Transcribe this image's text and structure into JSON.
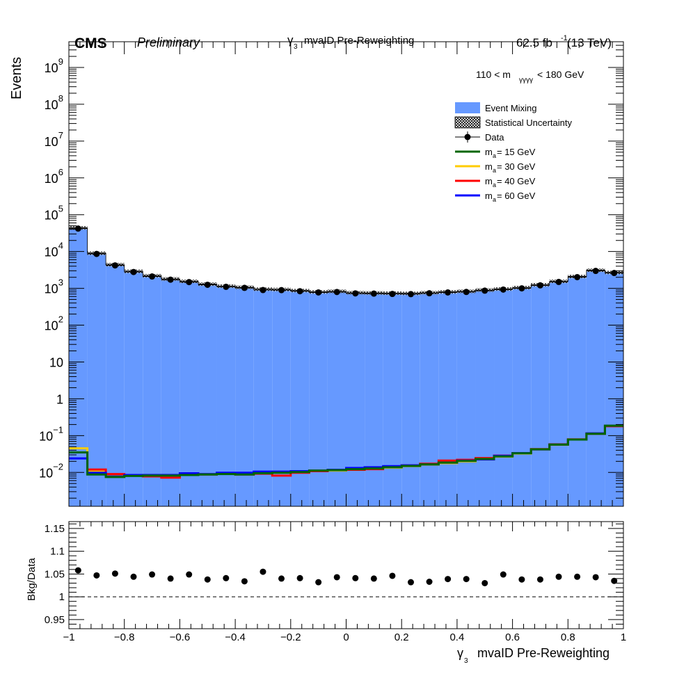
{
  "header": {
    "experiment": "CMS",
    "status": "Preliminary",
    "title_main": "γ",
    "title_sub": "3",
    "title_rest": "mvaID Pre-Reweighting",
    "lumi_pre": "62.5 fb",
    "lumi_sup": "-1",
    "lumi_post": " (13 TeV)"
  },
  "annotation": {
    "pre": "110 < m",
    "sub": "γγγγ",
    "post": " < 180 GeV"
  },
  "axes": {
    "ylabel": "Events",
    "ratio_ylabel": "Bkg/Data",
    "xlabel_main": "γ",
    "xlabel_sub": "3",
    "xlabel_rest": "mvaID Pre-Reweighting"
  },
  "legend": [
    {
      "label": "Event Mixing",
      "style": "fill",
      "color": "#6699ff"
    },
    {
      "label": "Statistical Uncertainty",
      "style": "hatch",
      "color": "#000000"
    },
    {
      "label": "Data",
      "style": "marker",
      "color": "#000000"
    },
    {
      "label_pre": "m",
      "label_sub": "a",
      "label_post": " = 15 GeV",
      "style": "line",
      "color": "#006600"
    },
    {
      "label_pre": "m",
      "label_sub": "a",
      "label_post": " = 30 GeV",
      "style": "line",
      "color": "#ffcc00"
    },
    {
      "label_pre": "m",
      "label_sub": "a",
      "label_post": " = 40 GeV",
      "style": "line",
      "color": "#ff0000"
    },
    {
      "label_pre": "m",
      "label_sub": "a",
      "label_post": " = 60 GeV",
      "style": "line",
      "color": "#0000ff"
    }
  ],
  "chart_data": [
    {
      "type": "bar",
      "panel": "main",
      "ylabel": "Events",
      "yscale": "log",
      "ylim": [
        0.0012,
        5000000000
      ],
      "xlim": [
        -1,
        1
      ],
      "y_ticks": [
        {
          "value": 0.01,
          "base": "10",
          "exp": "−2"
        },
        {
          "value": 0.1,
          "base": "10",
          "exp": "−1"
        },
        {
          "value": 1,
          "base": "1",
          "exp": ""
        },
        {
          "value": 10,
          "base": "10",
          "exp": ""
        },
        {
          "value": 100,
          "base": "10",
          "exp": "2"
        },
        {
          "value": 1000,
          "base": "10",
          "exp": "3"
        },
        {
          "value": 10000,
          "base": "10",
          "exp": "4"
        },
        {
          "value": 100000,
          "base": "10",
          "exp": "5"
        },
        {
          "value": 1000000,
          "base": "10",
          "exp": "6"
        },
        {
          "value": 10000000,
          "base": "10",
          "exp": "7"
        },
        {
          "value": 100000000,
          "base": "10",
          "exp": "8"
        },
        {
          "value": 1000000000,
          "base": "10",
          "exp": "9"
        }
      ],
      "bin_edges": [
        -1.0,
        -0.9333,
        -0.8667,
        -0.8,
        -0.7333,
        -0.6667,
        -0.6,
        -0.5333,
        -0.4667,
        -0.4,
        -0.3333,
        -0.2667,
        -0.2,
        -0.1333,
        -0.0667,
        0.0,
        0.0667,
        0.1333,
        0.2,
        0.2667,
        0.3333,
        0.4,
        0.4667,
        0.5333,
        0.6,
        0.6667,
        0.7333,
        0.8,
        0.8667,
        0.9333,
        1.0
      ],
      "series": [
        {
          "name": "Event Mixing",
          "color": "#6699ff",
          "style": "fill",
          "values": [
            44000,
            9000,
            4400,
            2900,
            2200,
            1800,
            1550,
            1300,
            1150,
            1070,
            950,
            930,
            870,
            800,
            830,
            760,
            750,
            740,
            730,
            760,
            800,
            830,
            900,
            960,
            1050,
            1250,
            1550,
            2100,
            3100,
            2700
          ]
        },
        {
          "name": "Data",
          "color": "#000000",
          "style": "marker",
          "values": [
            42000,
            8600,
            4200,
            2780,
            2100,
            1720,
            1480,
            1250,
            1100,
            1030,
            900,
            895,
            835,
            775,
            795,
            730,
            720,
            705,
            697,
            735,
            774,
            798,
            866,
            927,
            1000,
            1205,
            1490,
            2015,
            2975,
            2610
          ]
        },
        {
          "name": "m = 30 GeV",
          "color": "#ffcc00",
          "style": "line",
          "values": [
            0.045,
            0.011,
            0.0085,
            0.0085,
            0.0085,
            0.0085,
            0.0088,
            0.009,
            0.0092,
            0.0092,
            0.0098,
            0.0098,
            0.0102,
            0.0108,
            0.0112,
            0.0118,
            0.0125,
            0.0135,
            0.0148,
            0.0162,
            0.0178,
            0.0198,
            0.0225,
            0.0268,
            0.0325,
            0.042,
            0.056,
            0.078,
            0.115,
            0.185
          ]
        },
        {
          "name": "m = 40 GeV",
          "color": "#ff0000",
          "style": "line",
          "values": [
            0.035,
            0.012,
            0.009,
            0.0082,
            0.0078,
            0.0072,
            0.0085,
            0.0088,
            0.0092,
            0.0088,
            0.0092,
            0.0082,
            0.0098,
            0.0108,
            0.0115,
            0.0118,
            0.0122,
            0.014,
            0.0155,
            0.0172,
            0.021,
            0.022,
            0.0245,
            0.0285,
            0.0335,
            0.043,
            0.058,
            0.079,
            0.112,
            0.18
          ]
        },
        {
          "name": "m = 60 GeV",
          "color": "#0000ff",
          "style": "line",
          "values": [
            0.024,
            0.0098,
            0.0078,
            0.0085,
            0.0085,
            0.0085,
            0.0095,
            0.009,
            0.0098,
            0.0098,
            0.0105,
            0.0105,
            0.0108,
            0.0112,
            0.0118,
            0.0132,
            0.0138,
            0.0148,
            0.0155,
            0.0165,
            0.0185,
            0.021,
            0.0225,
            0.0282,
            0.0335,
            0.042,
            0.057,
            0.078,
            0.115,
            0.185
          ]
        },
        {
          "name": "m = 15 GeV",
          "color": "#006600",
          "style": "line",
          "values": [
            0.035,
            0.0088,
            0.0075,
            0.008,
            0.0082,
            0.0082,
            0.0085,
            0.0088,
            0.009,
            0.0088,
            0.0095,
            0.0098,
            0.0102,
            0.0112,
            0.0115,
            0.0122,
            0.0128,
            0.0138,
            0.015,
            0.0165,
            0.0185,
            0.0205,
            0.0232,
            0.0272,
            0.033,
            0.0425,
            0.057,
            0.078,
            0.112,
            0.185
          ]
        }
      ]
    },
    {
      "type": "scatter",
      "panel": "ratio",
      "ylabel": "Bkg/Data",
      "ylim": [
        0.93,
        1.165
      ],
      "xlim": [
        -1,
        1
      ],
      "y_ticks": [
        "0.95",
        "1",
        "1.05",
        "1.1",
        "1.15"
      ],
      "x_ticks": [
        "−1",
        "−0.8",
        "−0.6",
        "−0.4",
        "−0.2",
        "0",
        "0.2",
        "0.4",
        "0.6",
        "0.8",
        "1"
      ],
      "reference_line": 1,
      "values": [
        1.058,
        1.047,
        1.051,
        1.044,
        1.049,
        1.04,
        1.049,
        1.038,
        1.041,
        1.034,
        1.055,
        1.04,
        1.041,
        1.032,
        1.043,
        1.041,
        1.04,
        1.046,
        1.032,
        1.033,
        1.039,
        1.039,
        1.03,
        1.049,
        1.038,
        1.038,
        1.044,
        1.044,
        1.043,
        1.035
      ]
    }
  ]
}
